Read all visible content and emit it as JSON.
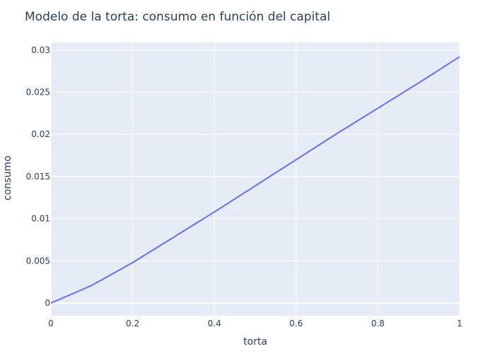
{
  "chart_data": {
    "type": "line",
    "title": "Modelo de la torta: consumo en función del capital",
    "xlabel": "torta",
    "ylabel": "consumo",
    "xlim": [
      0,
      1
    ],
    "ylim": [
      -0.0015,
      0.0309
    ],
    "x_ticks": [
      0,
      0.2,
      0.4,
      0.6,
      0.8,
      1
    ],
    "x_tick_labels": [
      "0",
      "0.2",
      "0.4",
      "0.6",
      "0.8",
      "1"
    ],
    "y_ticks": [
      0,
      0.005,
      0.01,
      0.015,
      0.02,
      0.025,
      0.03
    ],
    "y_tick_labels": [
      "0",
      "0.005",
      "0.01",
      "0.015",
      "0.02",
      "0.025",
      "0.03"
    ],
    "grid": true,
    "colors": {
      "line": "#636efa",
      "plot_bg": "#e5ecf6",
      "grid": "#ffffff",
      "text": "#2a3f5f"
    },
    "series": [
      {
        "x": [
          0,
          0.1,
          0.2,
          0.3,
          0.4,
          0.5,
          0.6,
          0.7,
          0.8,
          0.9,
          1.0
        ],
        "y": [
          0,
          0.0021,
          0.0048,
          0.0078,
          0.0108,
          0.0139,
          0.017,
          0.0201,
          0.0231,
          0.0261,
          0.0292
        ]
      }
    ]
  }
}
